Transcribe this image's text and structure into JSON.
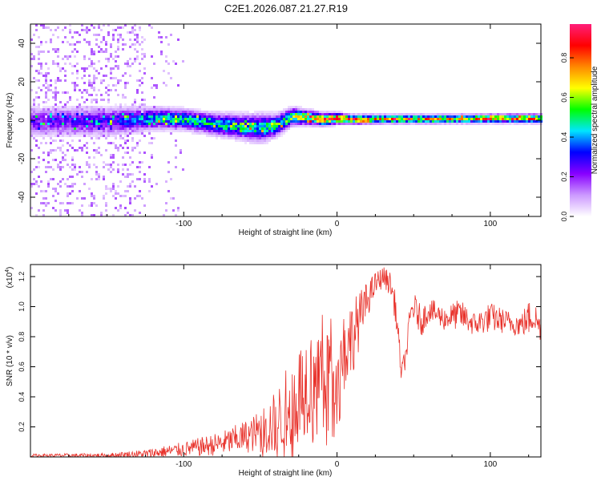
{
  "title": "C2E1.2026.087.21.27.R19",
  "chart_data": [
    {
      "type": "heatmap",
      "title": "C2E1.2026.087.21.27.R19",
      "xlabel": "Height of straight line (km)",
      "ylabel": "Frequency (Hz)",
      "xlim": [
        -200,
        133
      ],
      "ylim": [
        -50,
        50
      ],
      "xticks": [
        -100,
        0,
        100
      ],
      "yticks": [
        -40,
        -20,
        0,
        20,
        40
      ],
      "colorbar": {
        "label": "Normalized spectral amplitude",
        "range": [
          0,
          0.97
        ],
        "ticks": [
          "0.0",
          "0.2",
          "0.4",
          "0.6",
          "0.8"
        ],
        "tick_values": [
          0.0,
          0.2,
          0.4,
          0.6,
          0.8
        ],
        "colors": [
          "#ffffff",
          "#cc99ff",
          "#8800ff",
          "#0000ff",
          "#00e5ff",
          "#00ff00",
          "#ffff00",
          "#ff8800",
          "#ff0000",
          "#ff1f7a"
        ]
      },
      "ridge": {
        "x": [
          -200,
          -150,
          -120,
          -100,
          -80,
          -60,
          -50,
          -40,
          -30,
          -20,
          -10,
          0,
          10,
          30,
          60,
          100,
          133
        ],
        "center_hz": [
          0,
          0,
          1.5,
          1.0,
          -1.5,
          -3.0,
          -3.5,
          -2.0,
          2.5,
          2.0,
          1.0,
          1.5,
          1.0,
          1.2,
          1.2,
          1.5,
          1.5
        ],
        "halfwidth_hz": [
          4,
          4,
          3,
          2.8,
          3,
          3.5,
          3.8,
          3,
          2.5,
          2,
          1.8,
          1.5,
          1.3,
          1.2,
          1.2,
          1.2,
          1.2
        ],
        "peak_amplitude": [
          0.2,
          0.25,
          0.45,
          0.5,
          0.5,
          0.5,
          0.5,
          0.55,
          0.6,
          0.75,
          0.85,
          0.9,
          0.85,
          0.8,
          0.8,
          0.85,
          0.85
        ],
        "scatter_extent_x": [
          -200,
          -125
        ],
        "sparse_extent_x": [
          -125,
          -100
        ]
      }
    },
    {
      "type": "line",
      "xlabel": "Height of straight line (km)",
      "ylabel": "SNR (10 * v/v)",
      "multiplier_label": "(x10",
      "multiplier_exp": "4",
      "multiplier_close": ")",
      "xlim": [
        -200,
        133
      ],
      "ylim": [
        0,
        1.28
      ],
      "xticks": [
        -100,
        0,
        100
      ],
      "yticks": [
        "0.2",
        "0.4",
        "0.6",
        "0.8",
        "1.0",
        "1.2"
      ],
      "ytick_values": [
        0.2,
        0.4,
        0.6,
        0.8,
        1.0,
        1.2
      ],
      "color": "#e8312a",
      "envelope": {
        "x": [
          -200,
          -150,
          -125,
          -100,
          -75,
          -55,
          -40,
          -30,
          -20,
          -10,
          0,
          10,
          20,
          25,
          30,
          35,
          38,
          40,
          42,
          45,
          48,
          50,
          55,
          60,
          70,
          80,
          90,
          100,
          110,
          120,
          125,
          128,
          133
        ],
        "mid": [
          0.01,
          0.01,
          0.02,
          0.05,
          0.09,
          0.15,
          0.22,
          0.35,
          0.5,
          0.6,
          0.65,
          0.8,
          1.05,
          1.15,
          1.2,
          1.15,
          1.0,
          0.8,
          0.55,
          0.68,
          0.95,
          1.0,
          0.9,
          0.98,
          0.92,
          0.95,
          0.88,
          0.93,
          0.9,
          0.88,
          0.92,
          0.95,
          0.85
        ],
        "amp": [
          0.01,
          0.015,
          0.03,
          0.05,
          0.08,
          0.12,
          0.22,
          0.3,
          0.35,
          0.35,
          0.3,
          0.25,
          0.12,
          0.08,
          0.07,
          0.08,
          0.1,
          0.1,
          0.06,
          0.08,
          0.1,
          0.1,
          0.1,
          0.08,
          0.08,
          0.1,
          0.08,
          0.1,
          0.08,
          0.08,
          0.12,
          0.12,
          0.08
        ]
      }
    }
  ]
}
